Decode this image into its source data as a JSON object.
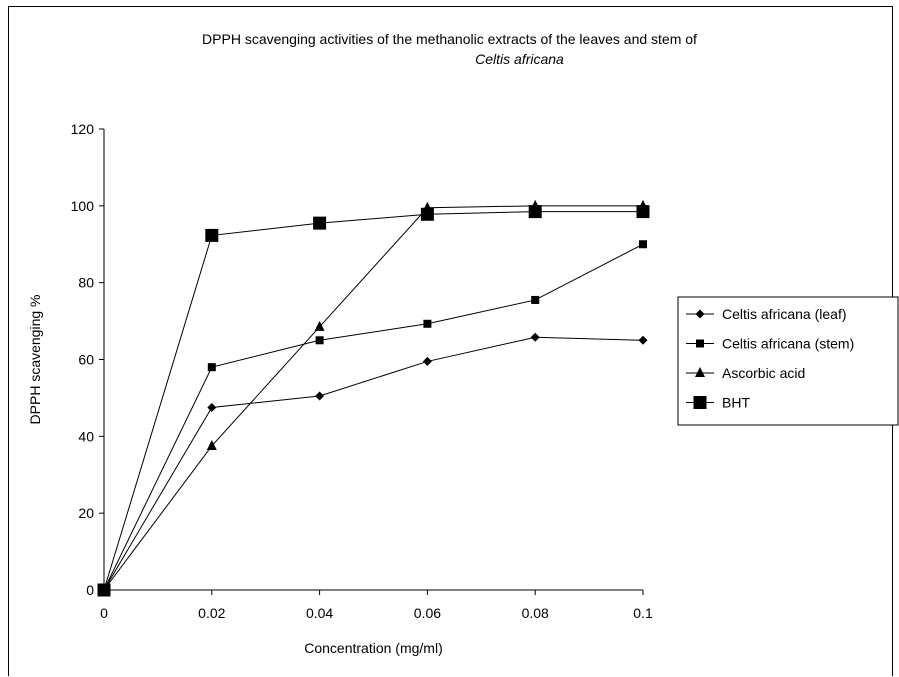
{
  "chart_data": {
    "type": "line",
    "title_line1": "DPPH scavenging activities of the methanolic extracts of the leaves and stem of",
    "title_line2": "Celtis africana",
    "xlabel": "Concentration (mg/ml)",
    "ylabel": "DPPH scavenging %",
    "x": [
      0,
      0.02,
      0.04,
      0.06,
      0.08,
      0.1
    ],
    "x_tick_labels": [
      "0",
      "0.02",
      "0.04",
      "0.06",
      "0.08",
      "0.1"
    ],
    "ylim": [
      0,
      120
    ],
    "y_ticks": [
      0,
      20,
      40,
      60,
      80,
      100,
      120
    ],
    "grid": false,
    "legend_position": "right",
    "series": [
      {
        "name": "Celtis africana (leaf)",
        "marker": "diamond",
        "values": [
          0,
          47.5,
          50.5,
          59.5,
          65.8,
          65
        ]
      },
      {
        "name": "Celtis africana (stem)",
        "marker": "square-small",
        "values": [
          0,
          58,
          65,
          69.3,
          75.5,
          90
        ]
      },
      {
        "name": "Ascorbic acid",
        "marker": "triangle",
        "values": [
          0,
          37.5,
          68.5,
          99.5,
          100,
          100
        ]
      },
      {
        "name": "BHT",
        "marker": "square-large",
        "values": [
          0,
          92.3,
          95.5,
          97.8,
          98.5,
          98.5
        ]
      }
    ]
  }
}
